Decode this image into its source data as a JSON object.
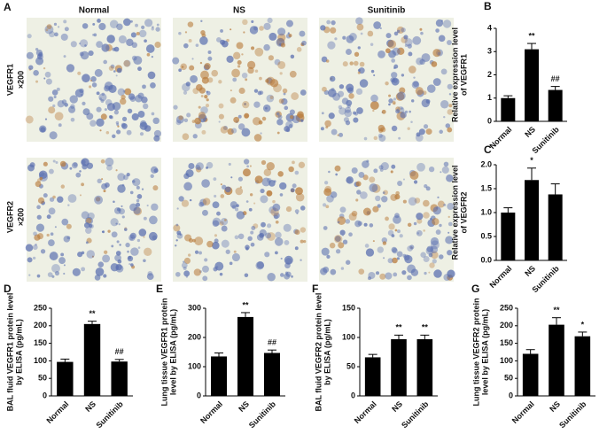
{
  "panel_a": {
    "label": "A",
    "columns": [
      "Normal",
      "NS",
      "Sunitinib"
    ],
    "rows": [
      [
        "VEGFR1",
        "×200"
      ],
      [
        "VEGFR2",
        "×200"
      ]
    ]
  },
  "chart_data": [
    {
      "type": "bar",
      "label": "B",
      "ylabel": [
        "Relative expression level",
        "of VEGFR1"
      ],
      "categories": [
        "Normal",
        "NS",
        "Sunitinib"
      ],
      "values": [
        1.0,
        3.1,
        1.35
      ],
      "errors": [
        0.1,
        0.25,
        0.15
      ],
      "annotations": [
        null,
        "**",
        "##"
      ],
      "color": "#000000",
      "ylim": [
        0,
        4
      ],
      "yticks": [
        0,
        1,
        2,
        3,
        4
      ]
    },
    {
      "type": "bar",
      "label": "C",
      "ylabel": [
        "Relative expression level",
        "of VEGFR2"
      ],
      "categories": [
        "Normal",
        "NS",
        "Sunitinib"
      ],
      "values": [
        1.0,
        1.68,
        1.38
      ],
      "errors": [
        0.1,
        0.25,
        0.22
      ],
      "annotations": [
        null,
        "*",
        null
      ],
      "color": "#000000",
      "ylim": [
        0,
        2
      ],
      "yticks": [
        {
          "value": 0,
          "label": "0.0"
        },
        0.5,
        {
          "value": 1,
          "label": "1.0"
        },
        1.5,
        {
          "value": 2,
          "label": "2.0"
        }
      ]
    },
    {
      "type": "bar",
      "label": "D",
      "ylabel": [
        "BAL fluid VEGFR1 protein level",
        "by ELISA (pg/mL)"
      ],
      "categories": [
        "Normal",
        "NS",
        "Sunitinib"
      ],
      "values": [
        97,
        205,
        98
      ],
      "errors": [
        8,
        8,
        6
      ],
      "annotations": [
        null,
        "**",
        "##"
      ],
      "color": "#000000",
      "ylim": [
        0,
        250
      ],
      "yticks": [
        0,
        50,
        100,
        150,
        200,
        250
      ]
    },
    {
      "type": "bar",
      "label": "E",
      "ylabel": [
        "Lung tissue VEGFR1 protein",
        "level by ELISA (pg/mL)"
      ],
      "categories": [
        "Normal",
        "NS",
        "Sunitinib"
      ],
      "values": [
        135,
        270,
        147
      ],
      "errors": [
        12,
        15,
        10
      ],
      "annotations": [
        null,
        "**",
        "##"
      ],
      "color": "#000000",
      "ylim": [
        0,
        300
      ],
      "yticks": [
        0,
        100,
        200,
        300
      ]
    },
    {
      "type": "bar",
      "label": "F",
      "ylabel": [
        "BAL fluid VEGFR2 protein level",
        "by ELISA (pg/mL)"
      ],
      "categories": [
        "Normal",
        "NS",
        "Sunitinib"
      ],
      "values": [
        66,
        97,
        97
      ],
      "errors": [
        5,
        7,
        7
      ],
      "annotations": [
        null,
        "**",
        "**"
      ],
      "color": "#000000",
      "ylim": [
        0,
        150
      ],
      "yticks": [
        0,
        50,
        100,
        150
      ]
    },
    {
      "type": "bar",
      "label": "G",
      "ylabel": [
        "Lung tissue VEGFR2 protein",
        "level by ELISA (pg/mL)"
      ],
      "categories": [
        "Normal",
        "NS",
        "Sunitinib"
      ],
      "values": [
        120,
        203,
        170
      ],
      "errors": [
        12,
        20,
        12
      ],
      "annotations": [
        null,
        "**",
        "*"
      ],
      "color": "#000000",
      "ylim": [
        0,
        250
      ],
      "yticks": [
        0,
        50,
        100,
        150,
        200,
        250
      ]
    }
  ]
}
